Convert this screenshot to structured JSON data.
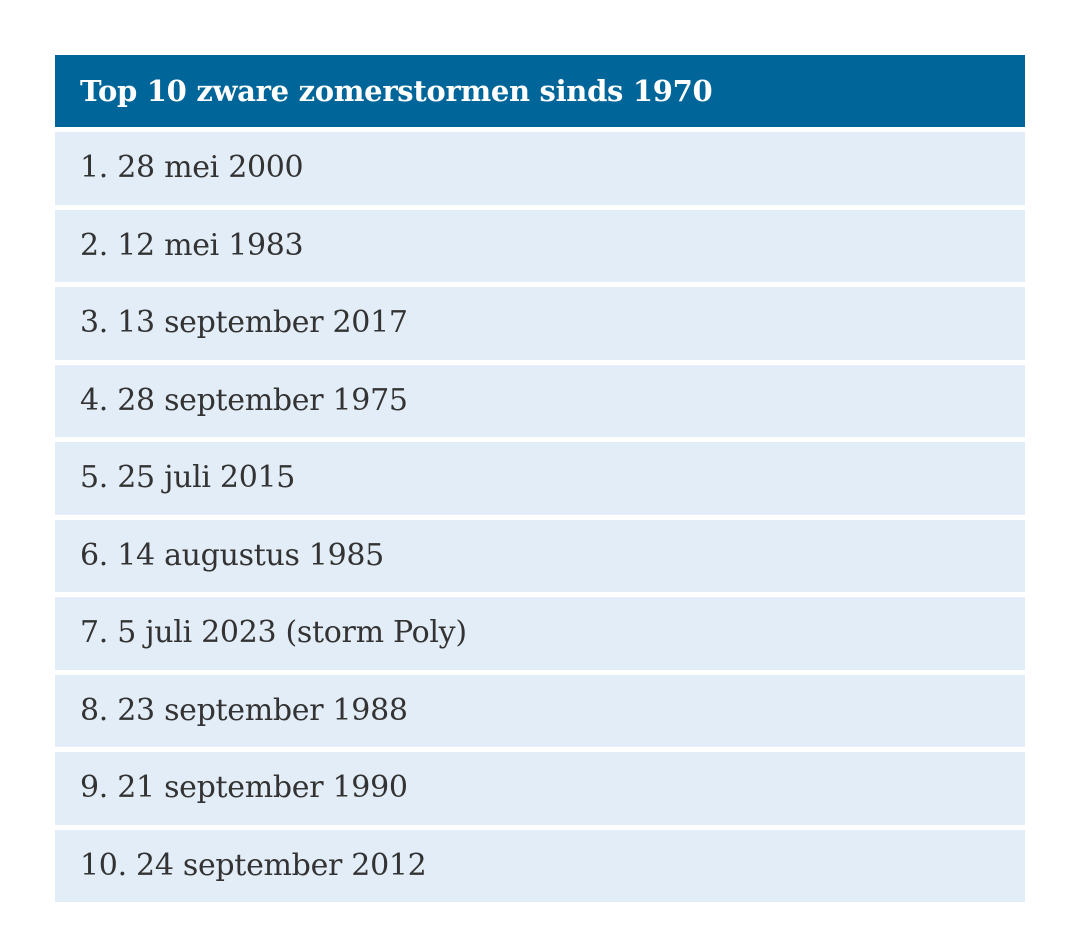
{
  "table": {
    "title": "Top 10 zware zomerstormen sinds 1970",
    "rows": [
      "1. 28 mei 2000",
      "2. 12 mei 1983",
      "3. 13 september 2017",
      "4. 28 september 1975",
      "5. 25 juli 2015",
      "6. 14 augustus 1985",
      "7. 5 juli 2023 (storm Poly)",
      "8. 23 september 1988",
      "9. 21 september 1990",
      "10. 24 september 2012"
    ]
  },
  "colors": {
    "header_bg": "#006699",
    "row_bg": "#e3edf7",
    "text": "#333333"
  }
}
